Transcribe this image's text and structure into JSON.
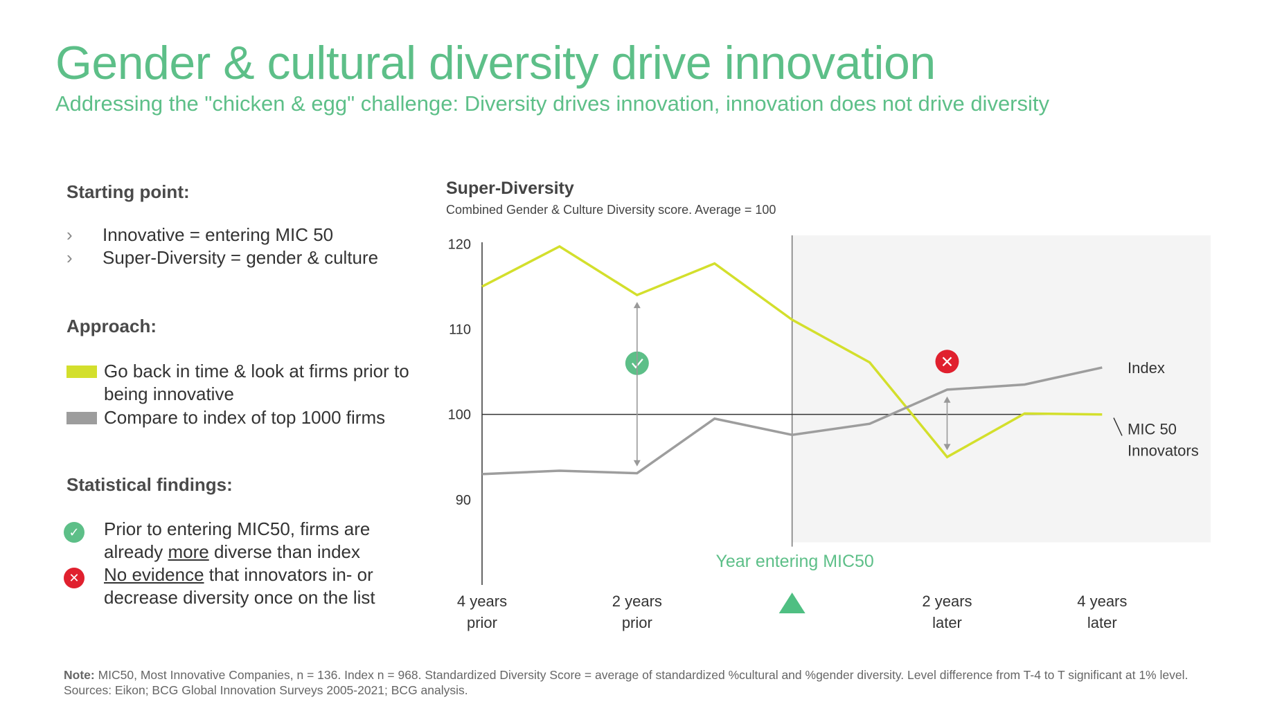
{
  "header": {
    "title": "Gender & cultural diversity drive innovation",
    "subtitle": "Addressing the \"chicken & egg\" challenge: Diversity drives innovation, innovation does not drive diversity"
  },
  "left_panel": {
    "starting_point": {
      "heading": "Starting point:",
      "bullets": [
        "Innovative = entering MIC 50",
        "Super-Diversity = gender & culture"
      ]
    },
    "approach": {
      "heading": "Approach:",
      "items": [
        {
          "color": "#d3df2c",
          "text": "Go back in time & look at firms prior to being innovative"
        },
        {
          "color": "#9d9d9d",
          "text": "Compare to index of top 1000 firms"
        }
      ]
    },
    "findings": {
      "heading": "Statistical findings:",
      "items": [
        {
          "icon": "check-circle-icon",
          "color": "#5dbf88",
          "text_before": "Prior to entering MIC50, firms are already ",
          "underlined": "more",
          "text_after": " diverse than index"
        },
        {
          "icon": "x-circle-icon",
          "color": "#e0202e",
          "text_before": "",
          "underlined": "No evidence",
          "text_after": " that innovators in- or decrease diversity once on the list"
        }
      ]
    }
  },
  "chart_header": {
    "title": "Super-Diversity",
    "subtitle": "Combined Gender & Culture  Diversity score. Average = 100"
  },
  "chart_data": {
    "type": "line",
    "x": [
      -4,
      -3,
      -2,
      -1,
      0,
      1,
      2,
      3,
      4
    ],
    "xticks": [
      {
        "x": -4,
        "lines": [
          "4 years",
          "prior"
        ]
      },
      {
        "x": -2,
        "lines": [
          "2 years",
          "prior"
        ]
      },
      {
        "x": 2,
        "lines": [
          "2 years",
          "later"
        ]
      },
      {
        "x": 4,
        "lines": [
          "4 years",
          "later"
        ]
      }
    ],
    "x_marker_label": "Year entering MIC50",
    "yticks": [
      90,
      100,
      110,
      120
    ],
    "ylim": [
      80,
      121
    ],
    "xlim": [
      -4,
      5.4
    ],
    "reference_line": 100,
    "shaded_region": [
      0,
      5.4
    ],
    "series": [
      {
        "name": "MIC 50 Innovators",
        "color": "#d3df2c",
        "values": [
          115,
          119.7,
          114,
          117.7,
          111.1,
          106.1,
          95,
          100.1,
          100
        ]
      },
      {
        "name": "Index",
        "color": "#9d9d9d",
        "values": [
          93,
          93.4,
          93.1,
          99.5,
          97.6,
          98.9,
          102.9,
          103.5,
          105.5
        ]
      }
    ],
    "annotations": [
      {
        "type": "check",
        "x": -2,
        "y": 106,
        "color": "#5dbf88"
      },
      {
        "type": "cross",
        "x": 2,
        "y": 106.2,
        "color": "#e0202e"
      },
      {
        "type": "double-arrow",
        "x": -2,
        "y1": 113.2,
        "y2": 93.9
      },
      {
        "type": "double-arrow",
        "x": 2,
        "y1": 102.1,
        "y2": 95.8
      }
    ]
  },
  "footer": {
    "note_label": "Note:",
    "note_text": " MIC50, Most Innovative Companies, n = 136. Index n = 968. Standardized Diversity Score = average of standardized %cultural and %gender diversity. Level difference from T-4 to T significant at 1% level. Sources: Eikon; BCG Global Innovation Surveys 2005-2021; BCG analysis."
  }
}
